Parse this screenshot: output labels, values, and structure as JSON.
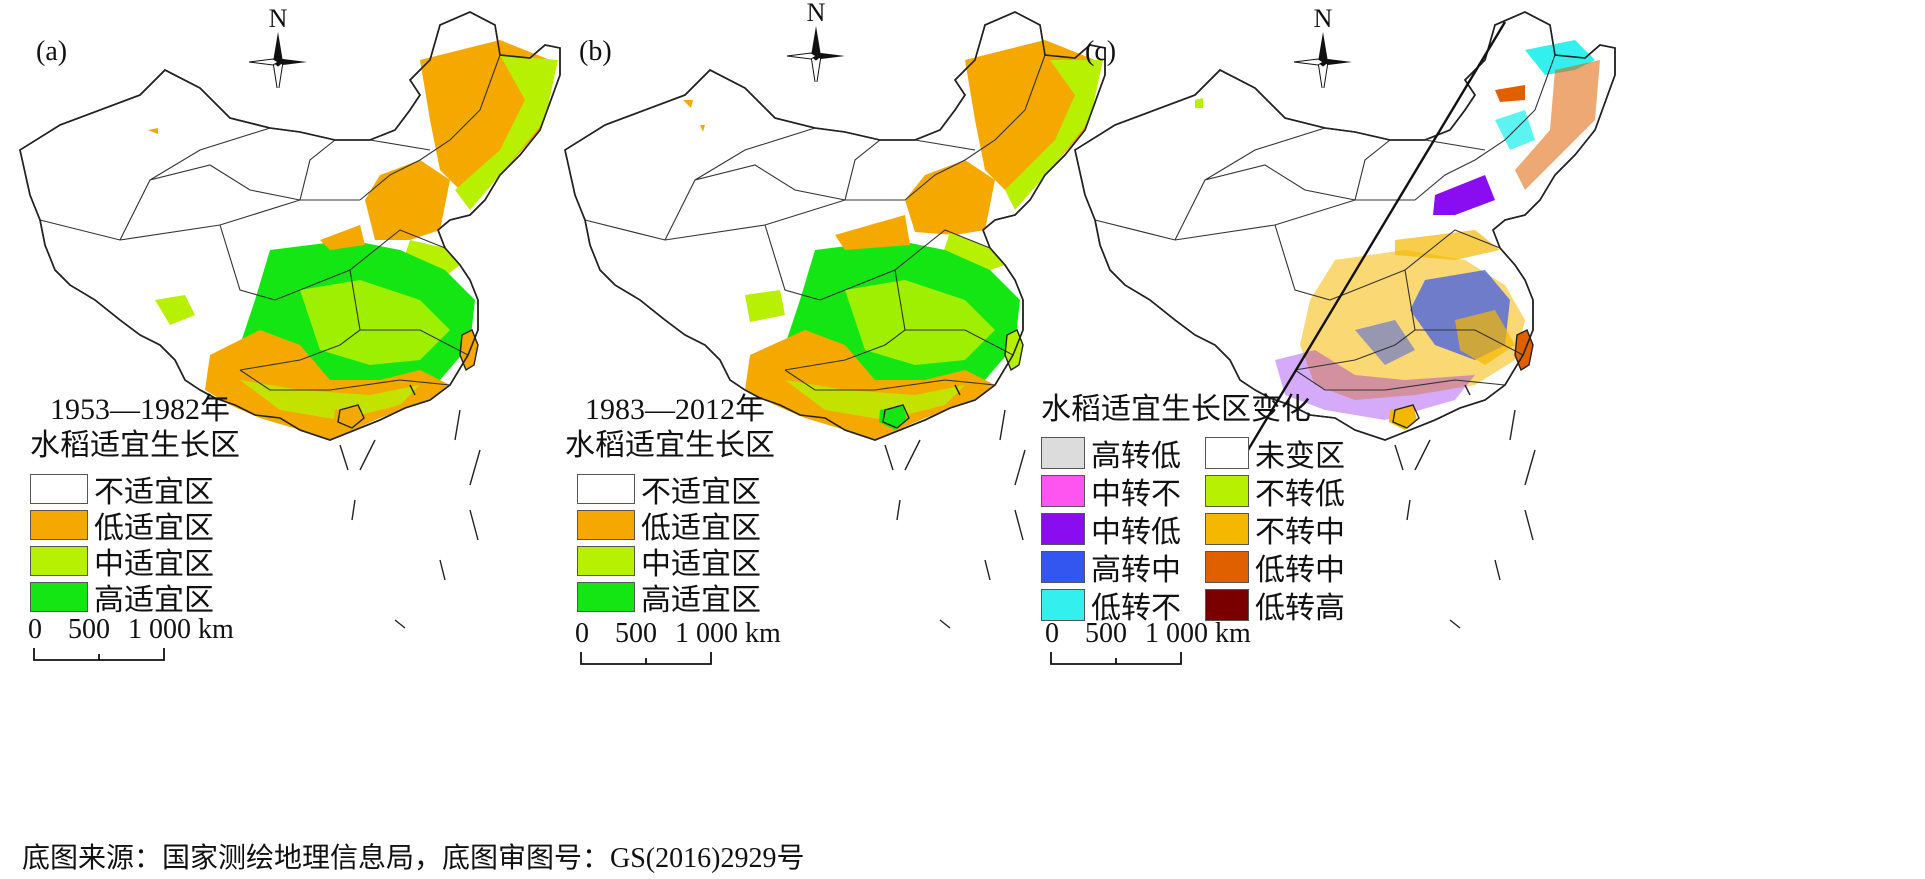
{
  "panels": [
    {
      "label": "(a)",
      "compass": "N",
      "legend_title_line1": "1953—1982年",
      "legend_title_line2": "水稻适宜生长区",
      "legend": [
        {
          "label": "不适宜区",
          "color": "#ffffff"
        },
        {
          "label": "低适宜区",
          "color": "#f5a800"
        },
        {
          "label": "中适宜区",
          "color": "#b7f000"
        },
        {
          "label": "高适宜区",
          "color": "#14e614"
        }
      ],
      "scale": {
        "start": "0",
        "mid": "500",
        "end": "1 000 km"
      }
    },
    {
      "label": "(b)",
      "compass": "N",
      "legend_title_line1": "1983—2012年",
      "legend_title_line2": "水稻适宜生长区",
      "legend": [
        {
          "label": "不适宜区",
          "color": "#ffffff"
        },
        {
          "label": "低适宜区",
          "color": "#f5a800"
        },
        {
          "label": "中适宜区",
          "color": "#b7f000"
        },
        {
          "label": "高适宜区",
          "color": "#14e614"
        }
      ],
      "scale": {
        "start": "0",
        "mid": "500",
        "end": "1 000 km"
      }
    },
    {
      "label": "(c)",
      "compass": "N",
      "legend_title": "水稻适宜生长区变化",
      "legend_left": [
        {
          "label": "高转低",
          "color": "#dcdcdc"
        },
        {
          "label": "中转不",
          "color": "#ff55f0"
        },
        {
          "label": "中转低",
          "color": "#8a0cf0"
        },
        {
          "label": "高转中",
          "color": "#3355f0"
        },
        {
          "label": "低转不",
          "color": "#33f0ee"
        }
      ],
      "legend_right": [
        {
          "label": "未变区",
          "color": "#ffffff"
        },
        {
          "label": "不转低",
          "color": "#b7f000"
        },
        {
          "label": "不转中",
          "color": "#f5b800"
        },
        {
          "label": "低转中",
          "color": "#e06000"
        },
        {
          "label": "低转高",
          "color": "#7a0000"
        }
      ],
      "scale": {
        "start": "0",
        "mid": "500",
        "end": "1 000 km"
      }
    }
  ],
  "footer": "底图来源：国家测绘地理信息局，底图审图号：GS(2016)2929号"
}
